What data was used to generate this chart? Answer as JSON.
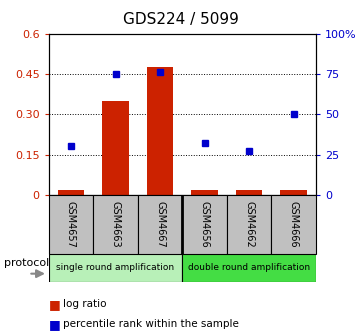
{
  "title": "GDS224 / 5099",
  "samples": [
    "GSM4657",
    "GSM4663",
    "GSM4667",
    "GSM4656",
    "GSM4662",
    "GSM4666"
  ],
  "log_ratio": [
    0.02,
    0.35,
    0.475,
    0.02,
    0.02,
    0.02
  ],
  "percentile": [
    30,
    75,
    76,
    32,
    27,
    50
  ],
  "left_ylim": [
    0,
    0.6
  ],
  "right_ylim": [
    0,
    100
  ],
  "left_yticks": [
    0,
    0.15,
    0.3,
    0.45,
    0.6
  ],
  "right_yticks": [
    0,
    25,
    50,
    75,
    100
  ],
  "right_yticklabels": [
    "0",
    "25",
    "50",
    "75",
    "100%"
  ],
  "left_yticklabels": [
    "0",
    "0.15",
    "0.30",
    "0.45",
    "0.6"
  ],
  "bar_color": "#cc2200",
  "scatter_color": "#0000cc",
  "title_fontsize": 11,
  "protocol_label_1": "single round amplification",
  "protocol_label_2": "double round amplification",
  "protocol_color_1": "#b8f0b8",
  "protocol_color_2": "#44dd44",
  "background_color": "#ffffff",
  "tick_label_area_color": "#c0c0c0",
  "legend_label_1": "log ratio",
  "legend_label_2": "percentile rank within the sample"
}
